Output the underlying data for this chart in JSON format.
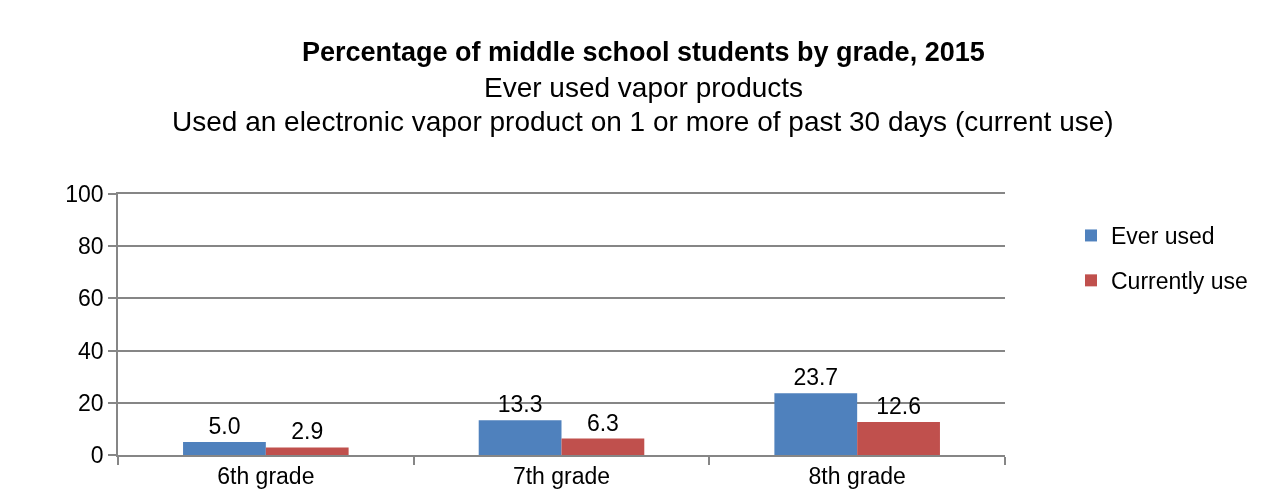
{
  "chart_data": {
    "type": "bar",
    "title": "Percentage of middle school students by grade, 2015",
    "subtitle": "Ever used vapor products\nUsed an electronic vapor product on 1 or more of past 30 days (current use)",
    "categories": [
      "6th grade",
      "7th grade",
      "8th grade"
    ],
    "series": [
      {
        "name": "Ever used",
        "color": "#4f81bd",
        "values": [
          5.0,
          13.3,
          23.7
        ],
        "value_labels": [
          "5.0",
          "13.3",
          "23.7"
        ]
      },
      {
        "name": "Currently use",
        "color": "#c0504d",
        "values": [
          2.9,
          6.3,
          12.6
        ],
        "value_labels": [
          "2.9",
          "6.3",
          "12.6"
        ]
      }
    ],
    "ylim": [
      0,
      100
    ],
    "yticks": [
      0,
      20,
      40,
      60,
      80,
      100
    ],
    "grid": "y",
    "legend": "right"
  }
}
